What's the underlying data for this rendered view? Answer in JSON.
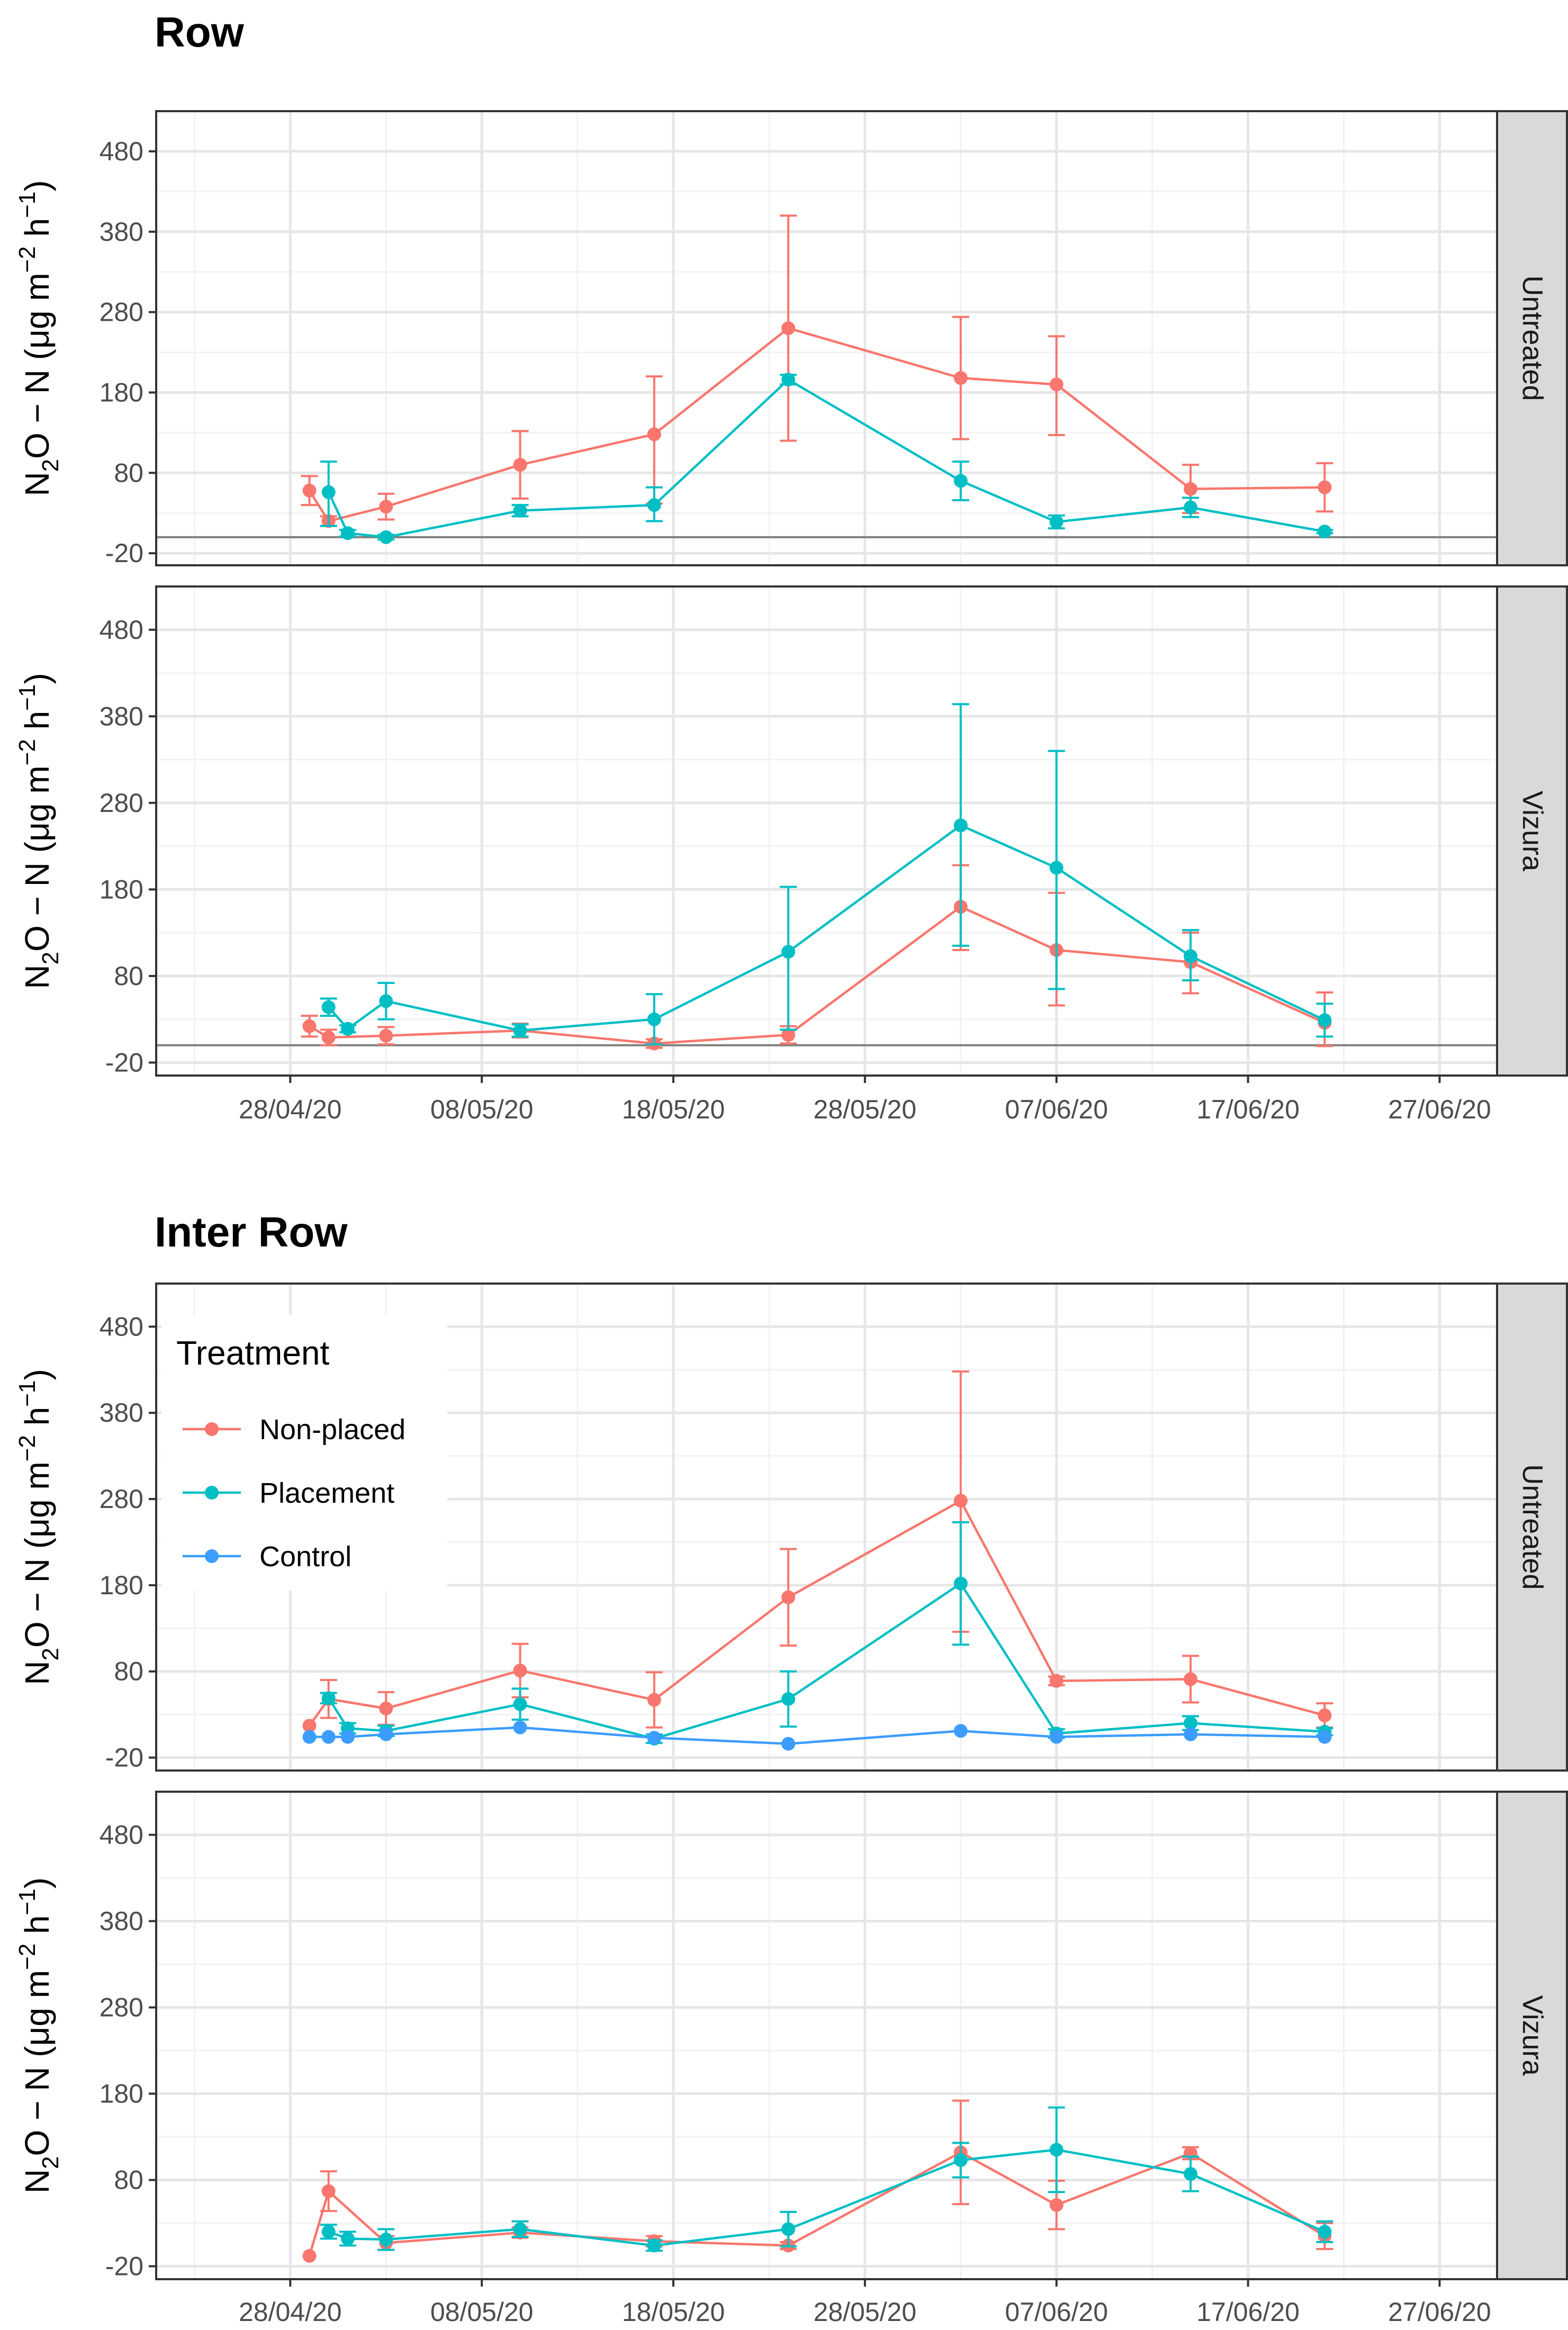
{
  "colors": {
    "Non-placed": "#F8766D",
    "Placement": "#00BFC4",
    "Control": "#3C9DFF",
    "grid_major": "#e6e6e6",
    "grid_minor": "#f2f2f2",
    "panel_border": "#333333",
    "strip_fill": "#d9d9d9",
    "zero_line": "#7f7f7f"
  },
  "y_axis_label": {
    "main_before": "N",
    "sub": "2",
    "main_middle": "O − N (μg m",
    "sup1": "−2",
    "main_after": " h",
    "sup2": "−1",
    "close": ")"
  },
  "chart_data": [
    {
      "type": "line",
      "title": "Row",
      "ylabel": "N2O − N (μg m−2 h−1)",
      "ylim": [
        -35,
        530
      ],
      "yticks": [
        -20,
        80,
        180,
        280,
        380,
        480
      ],
      "xlim": [
        "2020-04-21",
        "2020-06-30"
      ],
      "xticks": [
        "28/04/20",
        "08/05/20",
        "18/05/20",
        "28/05/20",
        "07/06/20",
        "17/06/20",
        "27/06/20"
      ],
      "grid": true,
      "facets": [
        {
          "strip": "Untreated",
          "series": [
            {
              "name": "Non-placed",
              "points": [
                {
                  "x": "2020-04-29",
                  "y": 58,
                  "lo": 40,
                  "hi": 76
                },
                {
                  "x": "2020-04-30",
                  "y": 20,
                  "lo": 14,
                  "hi": 26
                },
                {
                  "x": "2020-05-03",
                  "y": 38,
                  "lo": 22,
                  "hi": 54
                },
                {
                  "x": "2020-05-10",
                  "y": 90,
                  "lo": 48,
                  "hi": 132
                },
                {
                  "x": "2020-05-17",
                  "y": 128,
                  "lo": 42,
                  "hi": 200
                },
                {
                  "x": "2020-05-24",
                  "y": 260,
                  "lo": 120,
                  "hi": 400
                },
                {
                  "x": "2020-06-02",
                  "y": 198,
                  "lo": 122,
                  "hi": 274
                },
                {
                  "x": "2020-06-07",
                  "y": 190,
                  "lo": 127,
                  "hi": 250
                },
                {
                  "x": "2020-06-14",
                  "y": 60,
                  "lo": 30,
                  "hi": 90
                },
                {
                  "x": "2020-06-21",
                  "y": 62,
                  "lo": 32,
                  "hi": 92
                }
              ]
            },
            {
              "name": "Placement",
              "points": [
                {
                  "x": "2020-04-30",
                  "y": 56,
                  "lo": 14,
                  "hi": 94
                },
                {
                  "x": "2020-05-01",
                  "y": 5,
                  "lo": 1,
                  "hi": 9
                },
                {
                  "x": "2020-05-03",
                  "y": 0,
                  "lo": -3,
                  "hi": 3
                },
                {
                  "x": "2020-05-10",
                  "y": 33,
                  "lo": 26,
                  "hi": 40
                },
                {
                  "x": "2020-05-17",
                  "y": 40,
                  "lo": 20,
                  "hi": 62
                },
                {
                  "x": "2020-05-24",
                  "y": 196,
                  "lo": 190,
                  "hi": 202
                },
                {
                  "x": "2020-06-02",
                  "y": 70,
                  "lo": 46,
                  "hi": 94
                },
                {
                  "x": "2020-06-07",
                  "y": 19,
                  "lo": 11,
                  "hi": 27
                },
                {
                  "x": "2020-06-14",
                  "y": 37,
                  "lo": 25,
                  "hi": 49
                },
                {
                  "x": "2020-06-21",
                  "y": 7,
                  "lo": 5,
                  "hi": 9
                }
              ]
            }
          ]
        },
        {
          "strip": "Vizura",
          "series": [
            {
              "name": "Non-placed",
              "points": [
                {
                  "x": "2020-04-29",
                  "y": 22,
                  "lo": 10,
                  "hi": 34
                },
                {
                  "x": "2020-04-30",
                  "y": 9,
                  "lo": 0,
                  "hi": 18
                },
                {
                  "x": "2020-05-03",
                  "y": 11,
                  "lo": 1,
                  "hi": 21
                },
                {
                  "x": "2020-05-10",
                  "y": 17,
                  "lo": 9,
                  "hi": 25
                },
                {
                  "x": "2020-05-17",
                  "y": 2,
                  "lo": -3,
                  "hi": 7
                },
                {
                  "x": "2020-05-24",
                  "y": 12,
                  "lo": 2,
                  "hi": 22
                },
                {
                  "x": "2020-06-02",
                  "y": 160,
                  "lo": 110,
                  "hi": 208
                },
                {
                  "x": "2020-06-07",
                  "y": 110,
                  "lo": 46,
                  "hi": 176
                },
                {
                  "x": "2020-06-14",
                  "y": 96,
                  "lo": 60,
                  "hi": 130
                },
                {
                  "x": "2020-06-21",
                  "y": 26,
                  "lo": -1,
                  "hi": 61
                }
              ]
            },
            {
              "name": "Placement",
              "points": [
                {
                  "x": "2020-04-30",
                  "y": 44,
                  "lo": 34,
                  "hi": 54
                },
                {
                  "x": "2020-05-01",
                  "y": 19,
                  "lo": 15,
                  "hi": 23
                },
                {
                  "x": "2020-05-03",
                  "y": 51,
                  "lo": 30,
                  "hi": 72
                },
                {
                  "x": "2020-05-10",
                  "y": 17,
                  "lo": 10,
                  "hi": 24
                },
                {
                  "x": "2020-05-17",
                  "y": 30,
                  "lo": 1,
                  "hi": 59
                },
                {
                  "x": "2020-05-24",
                  "y": 108,
                  "lo": 18,
                  "hi": 183
                },
                {
                  "x": "2020-06-02",
                  "y": 254,
                  "lo": 115,
                  "hi": 394
                },
                {
                  "x": "2020-06-07",
                  "y": 205,
                  "lo": 65,
                  "hi": 340
                },
                {
                  "x": "2020-06-14",
                  "y": 103,
                  "lo": 75,
                  "hi": 133
                },
                {
                  "x": "2020-06-21",
                  "y": 29,
                  "lo": 10,
                  "hi": 48
                }
              ]
            }
          ]
        }
      ]
    },
    {
      "type": "line",
      "title": "Inter Row",
      "ylabel": "N2O − N (μg m−2 h−1)",
      "ylim": [
        -35,
        530
      ],
      "yticks": [
        -20,
        80,
        180,
        280,
        380,
        480
      ],
      "xlim": [
        "2020-04-21",
        "2020-06-30"
      ],
      "xticks": [
        "28/04/20",
        "08/05/20",
        "18/05/20",
        "28/05/20",
        "07/06/20",
        "17/06/20",
        "27/06/20"
      ],
      "grid": true,
      "legend": {
        "title": "Treatment",
        "placement": "top-left",
        "entries": [
          "Non-placed",
          "Placement",
          "Control"
        ]
      },
      "facets": [
        {
          "strip": "Untreated",
          "series": [
            {
              "name": "Non-placed",
              "points": [
                {
                  "x": "2020-04-29",
                  "y": 17
                },
                {
                  "x": "2020-04-30",
                  "y": 48,
                  "lo": 26,
                  "hi": 70
                },
                {
                  "x": "2020-05-03",
                  "y": 37,
                  "lo": 18,
                  "hi": 56
                },
                {
                  "x": "2020-05-10",
                  "y": 81,
                  "lo": 50,
                  "hi": 112
                },
                {
                  "x": "2020-05-17",
                  "y": 47,
                  "lo": 15,
                  "hi": 79
                },
                {
                  "x": "2020-05-24",
                  "y": 166,
                  "lo": 110,
                  "hi": 222
                },
                {
                  "x": "2020-06-02",
                  "y": 278,
                  "lo": 126,
                  "hi": 428
                },
                {
                  "x": "2020-06-07",
                  "y": 69,
                  "lo": 64,
                  "hi": 74
                },
                {
                  "x": "2020-06-14",
                  "y": 71,
                  "lo": 44,
                  "hi": 98
                },
                {
                  "x": "2020-06-21",
                  "y": 29,
                  "lo": 15,
                  "hi": 43
                }
              ]
            },
            {
              "name": "Placement",
              "points": [
                {
                  "x": "2020-04-30",
                  "y": 49,
                  "lo": 43,
                  "hi": 55
                },
                {
                  "x": "2020-05-01",
                  "y": 14,
                  "lo": 8,
                  "hi": 20
                },
                {
                  "x": "2020-05-03",
                  "y": 11,
                  "lo": 5,
                  "hi": 17
                },
                {
                  "x": "2020-05-10",
                  "y": 42,
                  "lo": 24,
                  "hi": 60
                },
                {
                  "x": "2020-05-17",
                  "y": 2,
                  "lo": -3,
                  "hi": 7
                },
                {
                  "x": "2020-05-24",
                  "y": 48,
                  "lo": 16,
                  "hi": 80
                },
                {
                  "x": "2020-06-02",
                  "y": 182,
                  "lo": 111,
                  "hi": 253
                },
                {
                  "x": "2020-06-07",
                  "y": 8,
                  "lo": 3,
                  "hi": 13
                },
                {
                  "x": "2020-06-14",
                  "y": 20,
                  "lo": 12,
                  "hi": 28
                },
                {
                  "x": "2020-06-21",
                  "y": 10,
                  "lo": 6,
                  "hi": 14
                }
              ]
            },
            {
              "name": "Control",
              "points": [
                {
                  "x": "2020-04-29",
                  "y": 4
                },
                {
                  "x": "2020-04-30",
                  "y": 4
                },
                {
                  "x": "2020-05-01",
                  "y": 4
                },
                {
                  "x": "2020-05-03",
                  "y": 7
                },
                {
                  "x": "2020-05-10",
                  "y": 15
                },
                {
                  "x": "2020-05-17",
                  "y": 3
                },
                {
                  "x": "2020-05-24",
                  "y": -4
                },
                {
                  "x": "2020-06-02",
                  "y": 11
                },
                {
                  "x": "2020-06-07",
                  "y": 4
                },
                {
                  "x": "2020-06-14",
                  "y": 7
                },
                {
                  "x": "2020-06-21",
                  "y": 4
                }
              ]
            }
          ]
        },
        {
          "strip": "Vizura",
          "series": [
            {
              "name": "Non-placed",
              "points": [
                {
                  "x": "2020-04-29",
                  "y": -8
                },
                {
                  "x": "2020-04-30",
                  "y": 67,
                  "lo": 44,
                  "hi": 90
                },
                {
                  "x": "2020-05-03",
                  "y": 7,
                  "lo": -1,
                  "hi": 15
                },
                {
                  "x": "2020-05-10",
                  "y": 19,
                  "lo": 13,
                  "hi": 25
                },
                {
                  "x": "2020-05-17",
                  "y": 9,
                  "lo": 3,
                  "hi": 15
                },
                {
                  "x": "2020-05-24",
                  "y": 4,
                  "lo": 0,
                  "hi": 8
                },
                {
                  "x": "2020-06-02",
                  "y": 112,
                  "lo": 52,
                  "hi": 172
                },
                {
                  "x": "2020-06-07",
                  "y": 51,
                  "lo": 23,
                  "hi": 79
                },
                {
                  "x": "2020-06-14",
                  "y": 111,
                  "lo": 104,
                  "hi": 118
                },
                {
                  "x": "2020-06-21",
                  "y": 15,
                  "lo": 0,
                  "hi": 30
                }
              ]
            },
            {
              "name": "Placement",
              "points": [
                {
                  "x": "2020-04-30",
                  "y": 20,
                  "lo": 12,
                  "hi": 28
                },
                {
                  "x": "2020-05-01",
                  "y": 12,
                  "lo": 4,
                  "hi": 20
                },
                {
                  "x": "2020-05-03",
                  "y": 11,
                  "lo": -1,
                  "hi": 23
                },
                {
                  "x": "2020-05-10",
                  "y": 23,
                  "lo": 14,
                  "hi": 32
                },
                {
                  "x": "2020-05-17",
                  "y": 4,
                  "lo": -2,
                  "hi": 10
                },
                {
                  "x": "2020-05-24",
                  "y": 23,
                  "lo": 3,
                  "hi": 43
                },
                {
                  "x": "2020-06-02",
                  "y": 103,
                  "lo": 83,
                  "hi": 123
                },
                {
                  "x": "2020-06-07",
                  "y": 115,
                  "lo": 66,
                  "hi": 164
                },
                {
                  "x": "2020-06-14",
                  "y": 87,
                  "lo": 67,
                  "hi": 107
                },
                {
                  "x": "2020-06-21",
                  "y": 20,
                  "lo": 8,
                  "hi": 32
                }
              ]
            }
          ]
        }
      ]
    }
  ]
}
